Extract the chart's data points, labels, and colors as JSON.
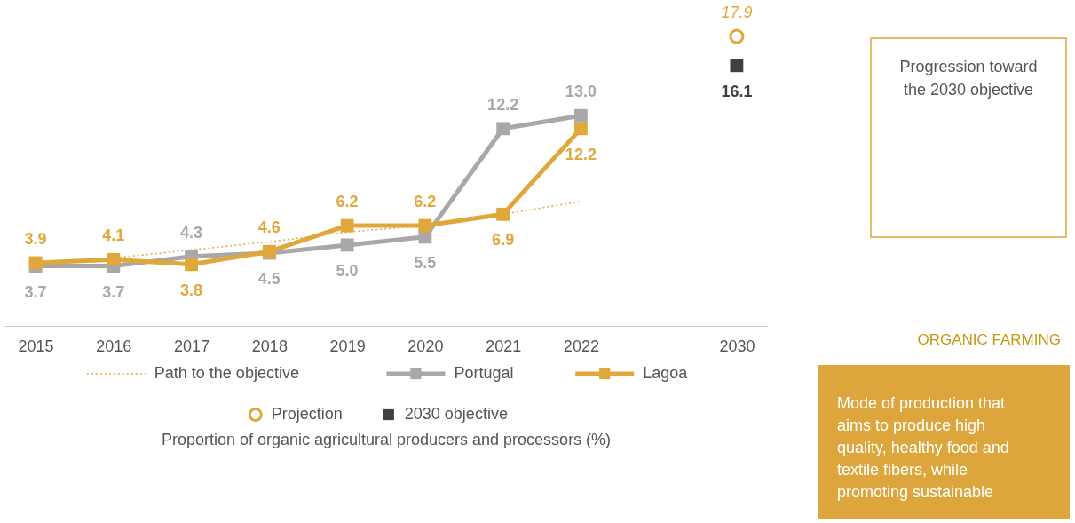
{
  "chart_data": {
    "type": "line",
    "title": "Proportion of organic agricultural producers and processors (%)",
    "categories": [
      "2015",
      "2016",
      "2017",
      "2018",
      "2019",
      "2020",
      "2021",
      "2022",
      null,
      "2030"
    ],
    "tick_labels": "x",
    "legend": "bottom",
    "series": [
      {
        "name": "Path to the objective",
        "type": "line",
        "color": "#e0a83a",
        "line_style": "dotted",
        "marker": "none",
        "values": [
          3.9,
          4.2,
          4.7,
          5.2,
          5.8,
          6.2,
          6.9,
          7.7,
          null,
          null
        ]
      },
      {
        "name": "Portugal",
        "type": "line",
        "color": "#aaa7a8",
        "line_style": "solid",
        "marker": "square",
        "values": [
          3.7,
          3.7,
          4.3,
          4.5,
          5.0,
          5.5,
          12.2,
          13.0,
          null,
          null
        ],
        "value_labels": [
          "3.7",
          "3.7",
          "4.3",
          "4.5",
          "5.0",
          "5.5",
          "12.2",
          "13.0",
          null,
          null
        ]
      },
      {
        "name": "Lagoa",
        "type": "line",
        "color": "#e0a83a",
        "line_style": "solid",
        "marker": "square",
        "values": [
          3.9,
          4.1,
          3.8,
          4.6,
          6.2,
          6.2,
          6.9,
          12.2,
          null,
          null
        ],
        "value_labels": [
          "3.9",
          "4.1",
          "3.8",
          "4.6",
          "6.2",
          "6.2",
          "6.9",
          "12.2",
          null,
          null
        ]
      },
      {
        "name": "Projection",
        "type": "scatter",
        "color": "#e0a83a",
        "marker": "circle",
        "values": [
          null,
          null,
          null,
          null,
          null,
          null,
          null,
          null,
          null,
          17.9
        ],
        "value_labels": [
          null,
          null,
          null,
          null,
          null,
          null,
          null,
          null,
          null,
          "17.9"
        ]
      },
      {
        "name": "2030 objective",
        "type": "scatter",
        "color": "#404040",
        "marker": "square",
        "values": [
          null,
          null,
          null,
          null,
          null,
          null,
          null,
          null,
          null,
          16.1
        ],
        "value_labels": [
          null,
          null,
          null,
          null,
          null,
          null,
          null,
          null,
          null,
          "16.1"
        ]
      }
    ],
    "annotations": [
      "Progression toward the 2030 objective",
      "ORGANIC FARMING",
      "Mode of production that aims to produce high quality, healthy food and textile fibers, while promoting sustainable"
    ]
  }
}
